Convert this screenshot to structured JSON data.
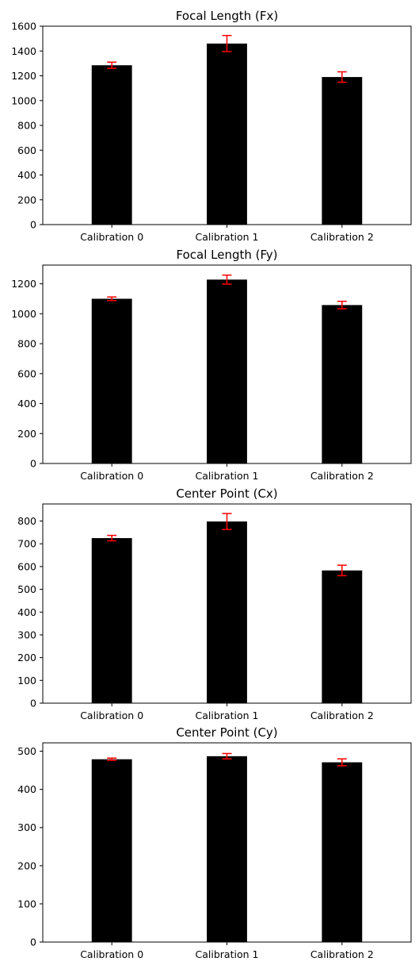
{
  "chart_data": [
    {
      "type": "bar",
      "title": "Focal Length (Fx)",
      "categories": [
        "Calibration 0",
        "Calibration 1",
        "Calibration 2"
      ],
      "values": [
        1285,
        1460,
        1190
      ],
      "errors": [
        25,
        65,
        42
      ],
      "ylim": [
        0,
        1600
      ],
      "yticks": [
        0,
        200,
        400,
        600,
        800,
        1000,
        1200,
        1400,
        1600
      ],
      "bar_color": "#000000",
      "error_color": "#ff0000",
      "grid": false
    },
    {
      "type": "bar",
      "title": "Focal Length (Fy)",
      "categories": [
        "Calibration 0",
        "Calibration 1",
        "Calibration 2"
      ],
      "values": [
        1100,
        1228,
        1058
      ],
      "errors": [
        12,
        30,
        25
      ],
      "ylim": [
        0,
        1325
      ],
      "yticks": [
        0,
        200,
        400,
        600,
        800,
        1000,
        1200
      ],
      "bar_color": "#000000",
      "error_color": "#ff0000",
      "grid": false
    },
    {
      "type": "bar",
      "title": "Center Point (Cx)",
      "categories": [
        "Calibration 0",
        "Calibration 1",
        "Calibration 2"
      ],
      "values": [
        725,
        798,
        583
      ],
      "errors": [
        12,
        35,
        23
      ],
      "ylim": [
        0,
        875
      ],
      "yticks": [
        0,
        100,
        200,
        300,
        400,
        500,
        600,
        700,
        800
      ],
      "bar_color": "#000000",
      "error_color": "#ff0000",
      "grid": false
    },
    {
      "type": "bar",
      "title": "Center Point (Cy)",
      "categories": [
        "Calibration 0",
        "Calibration 1",
        "Calibration 2"
      ],
      "values": [
        479,
        487,
        471
      ],
      "errors": [
        3,
        7,
        9
      ],
      "ylim": [
        0,
        522
      ],
      "yticks": [
        0,
        100,
        200,
        300,
        400,
        500
      ],
      "bar_color": "#000000",
      "error_color": "#ff0000",
      "grid": false
    }
  ]
}
